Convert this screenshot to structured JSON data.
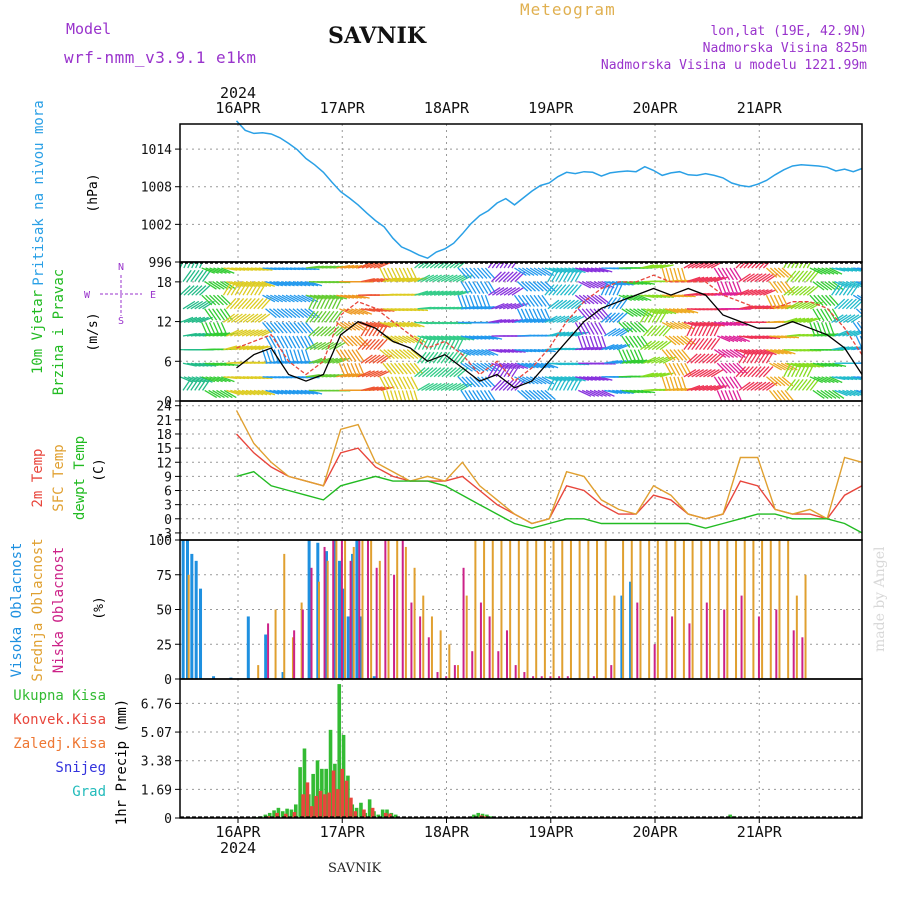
{
  "header": {
    "model_label": "Model",
    "model_name": "wrf-nmm_v3.9.1 e1km",
    "station": "SAVNIK",
    "product": "Meteogram",
    "lonlat": "lon,lat (19E, 42.9N)",
    "altitude": "Nadmorska Visina 825m",
    "model_altitude": "Nadmorska Visina u modelu 1221.99m",
    "footer_station": "SAVNIK",
    "watermark": "made by Angel"
  },
  "colors": {
    "pressure": "#2aa0e6",
    "temp2m": "#e8463c",
    "sfc_temp": "#e0a030",
    "dewpoint": "#22bb22",
    "high_cloud": "#1e90e0",
    "mid_cloud": "#e0a030",
    "low_cloud": "#cc2288",
    "total_precip": "#33bb33",
    "conv_precip": "#e8463c",
    "frz_precip": "#ee7733",
    "snow": "#3333dd",
    "hail": "#22bbbb",
    "label_purple": "#9933cc",
    "label_blue": "#2aa0e6",
    "label_green": "#22bb22",
    "meteogram_title": "#e0b050"
  },
  "chart_data": [
    {
      "type": "line",
      "id": "pressure",
      "ylabel_left": "Pritisak na nivou mora",
      "unit": "(hPa)",
      "ylim": [
        996,
        1018
      ],
      "yticks": [
        "1014",
        "1008",
        "1002",
        "996"
      ],
      "x_days": [
        "16APR",
        "17APR",
        "18APR",
        "19APR",
        "20APR",
        "21APR"
      ],
      "year": "2024",
      "x_hours": [
        0,
        2,
        4,
        6,
        8,
        10,
        12,
        14,
        16,
        18,
        20,
        22,
        24,
        26,
        28,
        30,
        32,
        34,
        36,
        38,
        40,
        42,
        44,
        46,
        48,
        50,
        52,
        54,
        56,
        58,
        60,
        62,
        64,
        66,
        68,
        70,
        72,
        74,
        76,
        78,
        80,
        82,
        84,
        86,
        88,
        90,
        92,
        94,
        96,
        98,
        100,
        102,
        104,
        106,
        108,
        110,
        112,
        114,
        116,
        118,
        120,
        122,
        124,
        126,
        128,
        130,
        132,
        134,
        136,
        138,
        140,
        142,
        144
      ],
      "series": [
        {
          "values": [
            1018.5,
            1017.0,
            1016.5,
            1016.6,
            1016.4,
            1015.8,
            1014.9,
            1013.9,
            1012.5,
            1011.5,
            1010.3,
            1008.7,
            1007.2,
            1006.2,
            1005.1,
            1003.8,
            1002.6,
            1001.6,
            999.8,
            998.4,
            997.8,
            997.1,
            996.6,
            997.6,
            998.1,
            999.0,
            1000.5,
            1002.1,
            1003.4,
            1004.2,
            1005.4,
            1006.1,
            1005.1,
            1006.2,
            1007.3,
            1008.2,
            1008.6,
            1009.6,
            1010.3,
            1010.1,
            1010.4,
            1010.3,
            1009.7,
            1010.2,
            1010.4,
            1010.5,
            1010.4,
            1011.2,
            1010.6,
            1009.8,
            1010.2,
            1010.4,
            1009.9,
            1009.8,
            1010.1,
            1009.8,
            1009.4,
            1008.6,
            1008.2,
            1008.0,
            1008.4,
            1009.0,
            1009.9,
            1010.7,
            1011.3,
            1011.5,
            1011.4,
            1011.3,
            1011.1,
            1010.5,
            1010.8,
            1010.4,
            1010.9
          ]
        }
      ]
    },
    {
      "type": "line",
      "id": "wind",
      "ylabel_left": [
        "10m Vjetar",
        "Brzina i Pravac"
      ],
      "unit": "(m/s)",
      "compass": [
        "N",
        "W",
        "E",
        "S"
      ],
      "ylim": [
        0,
        21
      ],
      "yticks": [
        "18",
        "12",
        "6",
        "0"
      ],
      "x_hours": [
        0,
        4,
        8,
        12,
        16,
        20,
        24,
        28,
        32,
        36,
        40,
        44,
        48,
        52,
        56,
        60,
        64,
        68,
        72,
        76,
        80,
        84,
        88,
        92,
        96,
        100,
        104,
        108,
        112,
        116,
        120,
        124,
        128,
        132,
        136,
        140,
        144
      ],
      "series": [
        {
          "name": "speed",
          "values": [
            5,
            7,
            8,
            4,
            3,
            4,
            10,
            12,
            11,
            9,
            8,
            6,
            7,
            5,
            3,
            4,
            2,
            3,
            6,
            9,
            12,
            14,
            15,
            16,
            17,
            16,
            17,
            16,
            13,
            12,
            11,
            11,
            12,
            11,
            10,
            8,
            4
          ]
        },
        {
          "name": "gust",
          "values": [
            8,
            9,
            10,
            6,
            4,
            6,
            13,
            15,
            14,
            12,
            10,
            8,
            9,
            7,
            4,
            6,
            3,
            5,
            8,
            12,
            15,
            17,
            18,
            18,
            19,
            18,
            18,
            18,
            16,
            15,
            14,
            14,
            15,
            15,
            14,
            11,
            7
          ]
        }
      ]
    },
    {
      "type": "line",
      "id": "temperature",
      "ylabel_left": [
        "2m Temp",
        "SFC Temp",
        "dewpt Temp"
      ],
      "unit": "(C)",
      "ylim": [
        -4.5,
        25
      ],
      "yticks": [
        "24",
        "21",
        "18",
        "15",
        "12",
        "9",
        "6",
        "3",
        "0",
        "-3"
      ],
      "x_hours": [
        0,
        4,
        8,
        12,
        16,
        20,
        24,
        28,
        32,
        36,
        40,
        44,
        48,
        52,
        56,
        60,
        64,
        68,
        72,
        76,
        80,
        84,
        88,
        92,
        96,
        100,
        104,
        108,
        112,
        116,
        120,
        124,
        128,
        132,
        136,
        140,
        144
      ],
      "series": [
        {
          "name": "2m Temp",
          "values": [
            18,
            14,
            11,
            9,
            8,
            7,
            14,
            15,
            11,
            9,
            8,
            8,
            8,
            9,
            6,
            3,
            1,
            -1,
            0,
            7,
            6,
            3,
            1,
            1,
            5,
            4,
            1,
            0,
            1,
            8,
            7,
            2,
            1,
            1,
            0,
            5,
            7
          ]
        },
        {
          "name": "SFC Temp",
          "values": [
            23,
            16,
            12,
            9,
            8,
            7,
            19,
            20,
            12,
            10,
            8,
            9,
            8,
            12,
            7,
            4,
            1,
            -1,
            0,
            10,
            9,
            4,
            2,
            1,
            7,
            5,
            1,
            0,
            1,
            13,
            13,
            2,
            1,
            2,
            0,
            13,
            12
          ]
        },
        {
          "name": "dewpt Temp",
          "values": [
            9,
            10,
            7,
            6,
            5,
            4,
            7,
            8,
            9,
            8,
            8,
            8,
            7,
            5,
            3,
            1,
            -1,
            -2,
            -1,
            0,
            0,
            -1,
            -1,
            -1,
            -1,
            -1,
            -1,
            -2,
            -1,
            0,
            1,
            1,
            0,
            0,
            0,
            -1,
            -3
          ]
        }
      ]
    },
    {
      "type": "bar",
      "id": "clouds",
      "ylabel_left": [
        "Visoka Oblacnost",
        "Srednja Oblacnost",
        "Niska Oblacnost"
      ],
      "unit": "(%)",
      "ylim": [
        0,
        100
      ],
      "yticks": [
        "100",
        "75",
        "50",
        "25",
        "0"
      ],
      "series": [
        {
          "name": "Visoka Oblacnost",
          "hours": [
            1,
            2,
            3,
            4,
            5,
            8,
            12,
            16,
            20,
            24,
            30,
            32,
            34,
            36,
            37,
            38,
            39,
            40,
            41,
            42,
            45,
            102,
            104
          ],
          "values": [
            100,
            100,
            90,
            85,
            65,
            2,
            1,
            45,
            32,
            5,
            100,
            98,
            92,
            100,
            85,
            65,
            45,
            90,
            100,
            45,
            2,
            60,
            70
          ]
        },
        {
          "name": "Srednja Oblacnost",
          "hours": [
            2,
            18,
            22,
            24,
            26,
            28,
            32,
            34,
            36,
            38,
            40,
            42,
            44,
            46,
            48,
            50,
            52,
            54,
            56,
            58,
            60,
            62,
            64,
            66,
            68,
            70,
            72,
            74,
            76,
            78,
            80,
            82,
            84,
            86,
            88,
            90,
            92,
            94,
            96,
            98,
            100,
            102,
            104,
            106,
            108,
            110,
            112,
            114,
            116,
            118,
            120,
            122,
            124,
            126,
            128,
            130,
            132,
            134,
            136,
            138,
            140,
            142,
            144
          ],
          "values": [
            75,
            10,
            50,
            90,
            30,
            55,
            70,
            85,
            100,
            100,
            95,
            100,
            100,
            85,
            100,
            100,
            95,
            80,
            60,
            45,
            35,
            25,
            10,
            60,
            100,
            100,
            100,
            100,
            100,
            100,
            100,
            100,
            100,
            100,
            100,
            100,
            100,
            100,
            100,
            100,
            60,
            100,
            100,
            100,
            100,
            100,
            100,
            100,
            100,
            100,
            100,
            100,
            100,
            100,
            100,
            100,
            100,
            100,
            100,
            100,
            100,
            60,
            75
          ]
        },
        {
          "name": "Niska Oblacnost",
          "hours": [
            20,
            26,
            28,
            30,
            33,
            35,
            37,
            39,
            41,
            43,
            45,
            47,
            49,
            51,
            53,
            55,
            57,
            59,
            61,
            63,
            65,
            67,
            69,
            71,
            73,
            75,
            77,
            79,
            81,
            83,
            85,
            87,
            89,
            95,
            99,
            105,
            109,
            113,
            117,
            121,
            125,
            129,
            133,
            137,
            141,
            143
          ],
          "values": [
            40,
            35,
            50,
            80,
            95,
            100,
            100,
            85,
            100,
            100,
            80,
            100,
            75,
            100,
            55,
            45,
            30,
            5,
            2,
            10,
            80,
            20,
            55,
            45,
            20,
            35,
            10,
            5,
            2,
            2,
            2,
            2,
            2,
            2,
            10,
            55,
            25,
            45,
            40,
            55,
            50,
            60,
            45,
            50,
            35,
            30
          ]
        }
      ]
    },
    {
      "type": "bar",
      "id": "precip",
      "ylabel_left": "1hr Precip",
      "unit": "(mm)",
      "legend": [
        "Ukupna Kisa",
        "Konvek.Kisa",
        "Zaledj.Kisa",
        "Snijeg",
        "Grad"
      ],
      "ylim": [
        0,
        8.2
      ],
      "yticks": [
        "6.76",
        "5.07",
        "3.38",
        "1.69",
        "0"
      ],
      "x_days": [
        "16APR",
        "17APR",
        "18APR",
        "19APR",
        "20APR",
        "21APR"
      ],
      "year": "2024",
      "series": [
        {
          "name": "Ukupna Kisa",
          "hours": [
            18,
            19,
            20,
            21,
            22,
            23,
            24,
            25,
            26,
            27,
            28,
            29,
            30,
            31,
            32,
            33,
            34,
            35,
            36,
            37,
            38,
            39,
            40,
            41,
            42,
            43,
            44,
            45,
            46,
            47,
            48,
            49,
            50,
            68,
            69,
            70,
            71,
            72,
            127,
            128
          ],
          "values": [
            0.05,
            0.1,
            0.2,
            0.3,
            0.45,
            0.6,
            0.4,
            0.55,
            0.5,
            0.8,
            3.0,
            4.1,
            1.4,
            2.6,
            3.4,
            2.9,
            2.9,
            5.2,
            3.2,
            7.9,
            4.9,
            2.5,
            0.8,
            0.6,
            0.9,
            0.3,
            1.1,
            0.4,
            0.2,
            0.5,
            0.5,
            0.3,
            0.2,
            0.2,
            0.3,
            0.25,
            0.2,
            0.1,
            0.2,
            0.1
          ]
        },
        {
          "name": "Konvek.Kisa",
          "hours": [
            20,
            22,
            24,
            26,
            28,
            29,
            30,
            31,
            32,
            33,
            34,
            35,
            36,
            37,
            38,
            39,
            40,
            42,
            44,
            47,
            48,
            69,
            70
          ],
          "values": [
            0.1,
            0.3,
            0.25,
            0.35,
            1.4,
            2.1,
            0.7,
            1.3,
            1.6,
            1.4,
            1.5,
            2.8,
            1.7,
            2.9,
            2.2,
            1.2,
            0.4,
            0.5,
            0.6,
            0.3,
            0.25,
            0.15,
            0.1
          ]
        }
      ]
    }
  ]
}
